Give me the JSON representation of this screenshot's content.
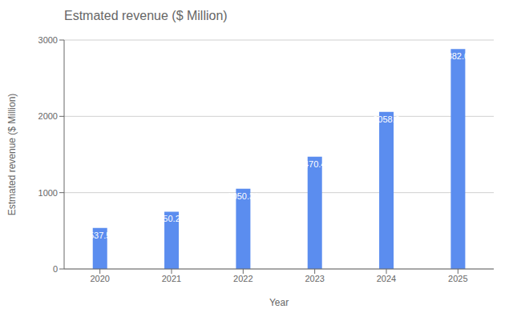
{
  "chart_data": {
    "type": "bar",
    "title": "Estmated revenue ($ Million)",
    "xlabel": "Year",
    "ylabel": "Estmated revenue ($ Million)",
    "categories": [
      "2020",
      "2021",
      "2022",
      "2023",
      "2024",
      "2025"
    ],
    "values": [
      537.5,
      750.22,
      1050.31,
      1470.43,
      2058.6,
      2882.05
    ],
    "color": "#5B8DEF",
    "ylim": [
      0,
      3000
    ],
    "yticks": [
      0,
      1000,
      2000,
      3000
    ],
    "grid": true,
    "data_labels": true
  }
}
